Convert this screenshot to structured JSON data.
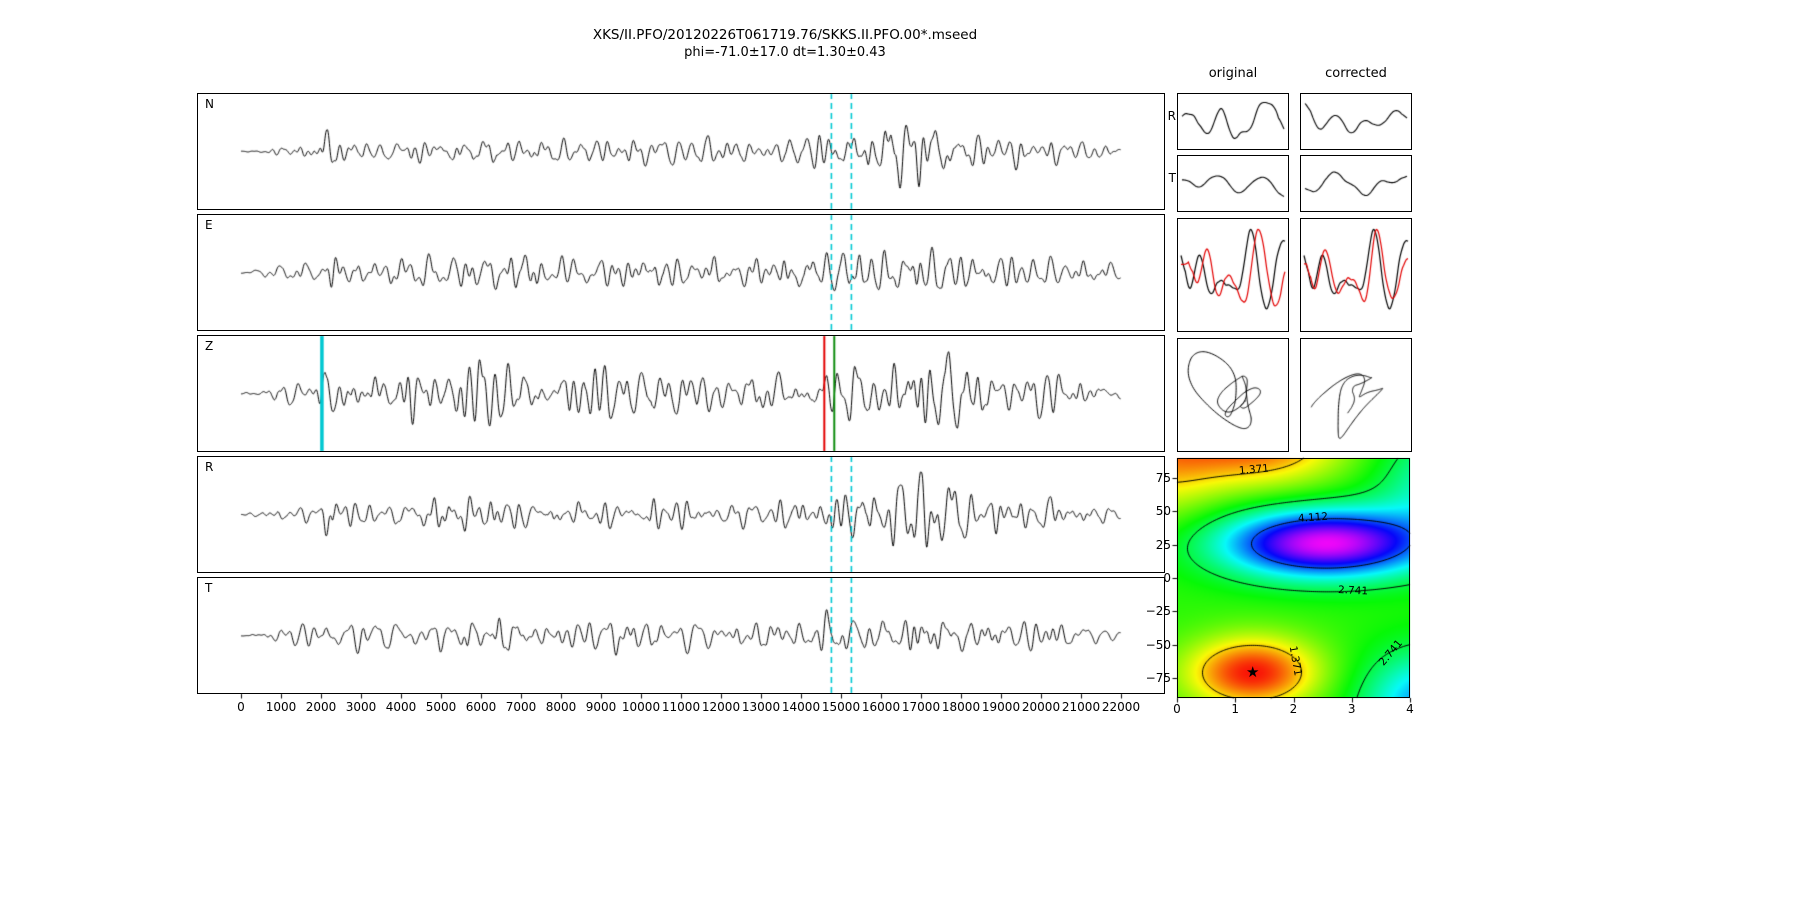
{
  "title": {
    "line1": "XKS/II.PFO/20120226T061719.76/SKKS.II.PFO.00*.mseed",
    "line2": "phi=-71.0±17.0 dt=1.30±0.43"
  },
  "panels": {
    "labels": [
      "N",
      "E",
      "Z",
      "R",
      "T"
    ]
  },
  "columns": {
    "original": "original",
    "corrected": "corrected"
  },
  "mini_labels": {
    "r": "R",
    "t": "T"
  },
  "chart_data": {
    "type": "line",
    "trace_color": "#000000",
    "waveform_axis": {
      "xlim": [
        -1100,
        23100
      ],
      "x_ticks": [
        0,
        1000,
        2000,
        3000,
        4000,
        5000,
        6000,
        7000,
        8000,
        9000,
        10000,
        11000,
        12000,
        13000,
        14000,
        15000,
        16000,
        17000,
        18000,
        19000,
        20000,
        21000,
        22000
      ],
      "sample_step": 10
    },
    "window": {
      "start": 14760,
      "end": 15260,
      "color": "#00c8d2",
      "style": "dashed"
    },
    "z_markers": [
      {
        "x": 2023,
        "color": "#00c8d2",
        "width": 3.5
      },
      {
        "x": 14583,
        "color": "#e30000",
        "width": 2
      },
      {
        "x": 14832,
        "color": "#0e8c0e",
        "width": 2
      }
    ],
    "channels": [
      {
        "label": "N",
        "seed": 11,
        "amp": 44,
        "env": [
          [
            0,
            0.02
          ],
          [
            300,
            0.04
          ],
          [
            700,
            0.15
          ],
          [
            1500,
            0.22
          ],
          [
            1950,
            0.35
          ],
          [
            2080,
            1.0
          ],
          [
            2300,
            0.72
          ],
          [
            2600,
            0.32
          ],
          [
            3500,
            0.28
          ],
          [
            5000,
            0.38
          ],
          [
            6200,
            0.5
          ],
          [
            7000,
            0.38
          ],
          [
            8000,
            0.34
          ],
          [
            9000,
            0.42
          ],
          [
            10000,
            0.36
          ],
          [
            11000,
            0.4
          ],
          [
            12000,
            0.34
          ],
          [
            13000,
            0.38
          ],
          [
            14000,
            0.42
          ],
          [
            14700,
            0.55
          ],
          [
            15200,
            0.75
          ],
          [
            15800,
            0.6
          ],
          [
            16300,
            0.85
          ],
          [
            16900,
            1.0
          ],
          [
            17400,
            0.9
          ],
          [
            17900,
            0.62
          ],
          [
            18600,
            0.5
          ],
          [
            19500,
            0.46
          ],
          [
            20500,
            0.4
          ],
          [
            21300,
            0.3
          ],
          [
            21800,
            0.2
          ],
          [
            22000,
            0.1
          ]
        ]
      },
      {
        "label": "E",
        "seed": 23,
        "amp": 44,
        "env": [
          [
            0,
            0.02
          ],
          [
            300,
            0.06
          ],
          [
            800,
            0.22
          ],
          [
            1500,
            0.35
          ],
          [
            2000,
            0.55
          ],
          [
            2200,
            0.7
          ],
          [
            2600,
            0.45
          ],
          [
            3500,
            0.5
          ],
          [
            4500,
            0.55
          ],
          [
            5500,
            0.6
          ],
          [
            6500,
            0.62
          ],
          [
            7500,
            0.52
          ],
          [
            8500,
            0.56
          ],
          [
            9500,
            0.5
          ],
          [
            10500,
            0.55
          ],
          [
            11500,
            0.48
          ],
          [
            12500,
            0.52
          ],
          [
            13500,
            0.56
          ],
          [
            14500,
            0.62
          ],
          [
            15100,
            0.8
          ],
          [
            15700,
            0.68
          ],
          [
            16400,
            0.85
          ],
          [
            17000,
            0.8
          ],
          [
            17600,
            0.7
          ],
          [
            18400,
            0.58
          ],
          [
            19400,
            0.5
          ],
          [
            20400,
            0.44
          ],
          [
            21200,
            0.34
          ],
          [
            21800,
            0.22
          ],
          [
            22000,
            0.12
          ]
        ]
      },
      {
        "label": "Z",
        "seed": 37,
        "amp": 46,
        "env": [
          [
            0,
            0.03
          ],
          [
            400,
            0.08
          ],
          [
            900,
            0.28
          ],
          [
            1500,
            0.32
          ],
          [
            1950,
            0.6
          ],
          [
            2100,
            1.0
          ],
          [
            2500,
            0.85
          ],
          [
            3200,
            0.6
          ],
          [
            4200,
            0.68
          ],
          [
            5200,
            0.75
          ],
          [
            5900,
            0.95
          ],
          [
            6600,
            0.8
          ],
          [
            7400,
            0.72
          ],
          [
            8200,
            0.92
          ],
          [
            9000,
            0.7
          ],
          [
            9800,
            0.66
          ],
          [
            10800,
            0.72
          ],
          [
            11800,
            0.62
          ],
          [
            12800,
            0.66
          ],
          [
            13800,
            0.6
          ],
          [
            14800,
            0.68
          ],
          [
            15600,
            0.8
          ],
          [
            16200,
            0.95
          ],
          [
            16900,
            1.08
          ],
          [
            17500,
            0.95
          ],
          [
            18200,
            0.8
          ],
          [
            19000,
            0.7
          ],
          [
            20000,
            0.6
          ],
          [
            21000,
            0.48
          ],
          [
            21700,
            0.32
          ],
          [
            22000,
            0.15
          ]
        ]
      },
      {
        "label": "R",
        "seed": 47,
        "amp": 44,
        "env": [
          [
            0,
            0.02
          ],
          [
            300,
            0.05
          ],
          [
            800,
            0.18
          ],
          [
            1500,
            0.24
          ],
          [
            1950,
            0.32
          ],
          [
            2080,
            0.9
          ],
          [
            2350,
            0.65
          ],
          [
            2700,
            0.3
          ],
          [
            3800,
            0.28
          ],
          [
            5000,
            0.4
          ],
          [
            6200,
            0.48
          ],
          [
            7200,
            0.36
          ],
          [
            8200,
            0.34
          ],
          [
            9200,
            0.4
          ],
          [
            10200,
            0.36
          ],
          [
            11200,
            0.38
          ],
          [
            12200,
            0.34
          ],
          [
            13200,
            0.38
          ],
          [
            14200,
            0.44
          ],
          [
            14800,
            0.58
          ],
          [
            15300,
            0.72
          ],
          [
            15900,
            0.58
          ],
          [
            16500,
            0.9
          ],
          [
            17100,
            1.0
          ],
          [
            17600,
            0.85
          ],
          [
            18200,
            0.62
          ],
          [
            19000,
            0.5
          ],
          [
            20000,
            0.44
          ],
          [
            21000,
            0.34
          ],
          [
            21700,
            0.24
          ],
          [
            22000,
            0.12
          ]
        ]
      },
      {
        "label": "T",
        "seed": 59,
        "amp": 42,
        "env": [
          [
            0,
            0.02
          ],
          [
            400,
            0.09
          ],
          [
            900,
            0.26
          ],
          [
            1600,
            0.38
          ],
          [
            2100,
            0.5
          ],
          [
            2700,
            0.42
          ],
          [
            3600,
            0.46
          ],
          [
            4600,
            0.5
          ],
          [
            5600,
            0.55
          ],
          [
            6600,
            0.58
          ],
          [
            7600,
            0.5
          ],
          [
            8600,
            0.52
          ],
          [
            9600,
            0.48
          ],
          [
            10600,
            0.5
          ],
          [
            11600,
            0.44
          ],
          [
            12600,
            0.48
          ],
          [
            13600,
            0.52
          ],
          [
            14600,
            0.6
          ],
          [
            15200,
            0.82
          ],
          [
            15800,
            0.66
          ],
          [
            16500,
            0.85
          ],
          [
            17100,
            0.78
          ],
          [
            17800,
            0.66
          ],
          [
            18600,
            0.56
          ],
          [
            19600,
            0.5
          ],
          [
            20600,
            0.42
          ],
          [
            21400,
            0.32
          ],
          [
            21900,
            0.2
          ],
          [
            22000,
            0.12
          ]
        ]
      }
    ],
    "minis": {
      "r_original": {
        "seed": 201,
        "amp": 19
      },
      "r_corrected": {
        "seed": 206,
        "amp": 18
      },
      "t_original": {
        "seed": 203,
        "amp": 13
      },
      "t_corrected": {
        "seed": 208,
        "amp": 12
      },
      "overlay_original": {
        "seed": 301,
        "lag": 12,
        "red_color": "#e30000"
      },
      "overlay_corrected": {
        "seed": 301,
        "lag": 4,
        "red_color": "#e30000"
      },
      "pm_original": {
        "seed_u": 401,
        "seed_v": 402,
        "mixed": false
      },
      "pm_corrected": {
        "seed_u": 405,
        "seed_v": 406,
        "mixed": true
      }
    },
    "error_surface": {
      "xlim": [
        0,
        4
      ],
      "ylim": [
        -90,
        90
      ],
      "x_ticks": [
        0,
        1,
        2,
        3,
        4
      ],
      "y_tick_values": [
        75,
        50,
        25,
        0,
        -25,
        -50,
        -75
      ],
      "y_tick_labels": [
        "75",
        "50",
        "25",
        "0",
        "−25",
        "−50",
        "−75"
      ],
      "base": 2.35,
      "vmin": 0.55,
      "vmax": 5.4,
      "gaussians": [
        {
          "a": 3.0,
          "x0": 2.55,
          "y0": 26,
          "sx": 1.25,
          "sy": 18
        },
        {
          "a": -1.75,
          "x0": 1.3,
          "y0": -71,
          "sx": 0.8,
          "sy": 19
        },
        {
          "a": -1.5,
          "x0": 1.4,
          "y0": 103,
          "sx": 1.05,
          "sy": 24
        },
        {
          "a": 1.6,
          "x0": 4.4,
          "y0": -95,
          "sx": 0.85,
          "sy": 28
        },
        {
          "a": -1.0,
          "x0": -0.35,
          "y0": 95,
          "sx": 0.8,
          "sy": 35
        },
        {
          "a": 1.0,
          "x0": 4.6,
          "y0": 70,
          "sx": 0.8,
          "sy": 30
        }
      ],
      "contour_levels": [
        1.371,
        2.741,
        4.112
      ],
      "contour_labels": [
        {
          "text": "1.371",
          "x": 1.32,
          "y": 81,
          "rot": -5
        },
        {
          "text": "4.112",
          "x": 2.33,
          "y": 45,
          "rot": -4
        },
        {
          "text": "2.741",
          "x": 3.02,
          "y": -10,
          "rot": 3
        },
        {
          "text": "1.371",
          "x": 2.03,
          "y": -62,
          "rot": 80
        },
        {
          "text": "2.741",
          "x": 3.68,
          "y": -56,
          "rot": -50
        }
      ],
      "best": {
        "dt": 1.3,
        "phi": -71.0,
        "marker": "★"
      }
    }
  }
}
